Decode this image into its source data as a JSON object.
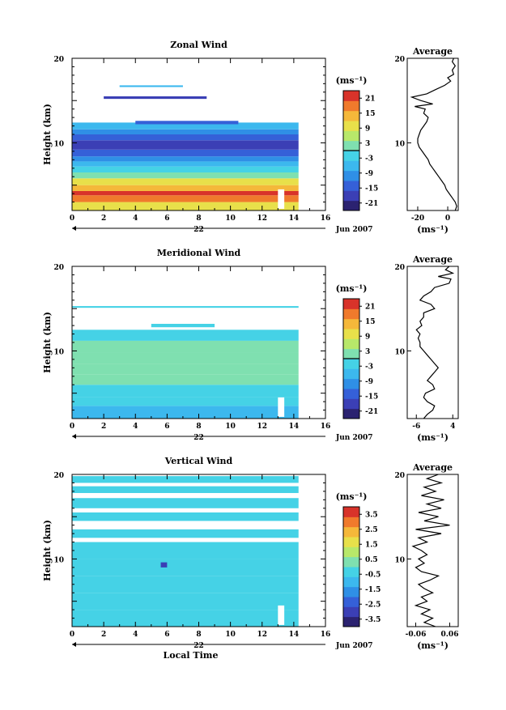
{
  "chart_data": [
    {
      "type": "heatmap",
      "title": "Zonal Wind",
      "xlabel": "",
      "ylabel": "Height (km)",
      "xlim": [
        0,
        16
      ],
      "ylim": [
        2,
        20
      ],
      "xticks": [
        "0",
        "2",
        "4",
        "6",
        "8",
        "10",
        "12",
        "14",
        "16"
      ],
      "yticks": [
        {
          "v": 10,
          "t": "10"
        },
        {
          "v": 20,
          "t": "20"
        }
      ],
      "date_marker": "22",
      "date_label": "Jun 2007",
      "data_xmax": 14.3,
      "colorbar": {
        "unit_label": "(ms⁻¹)",
        "ticks": [
          "21",
          "15",
          "9",
          "3",
          "-3",
          "-9",
          "-15",
          "-21"
        ],
        "range": [
          -24,
          24
        ],
        "zero_line": true
      },
      "layers": [
        {
          "y0": 2.0,
          "y1": 3.0,
          "value": 8
        },
        {
          "y0": 3.0,
          "y1": 3.8,
          "value": 16
        },
        {
          "y0": 3.8,
          "y1": 4.3,
          "value": 20
        },
        {
          "y0": 4.3,
          "y1": 5.0,
          "value": 14
        },
        {
          "y0": 5.0,
          "y1": 5.8,
          "value": 8
        },
        {
          "y0": 5.8,
          "y1": 6.5,
          "value": 2
        },
        {
          "y0": 6.5,
          "y1": 7.2,
          "value": -4
        },
        {
          "y0": 7.2,
          "y1": 7.8,
          "value": -8
        },
        {
          "y0": 7.8,
          "y1": 8.4,
          "value": -12
        },
        {
          "y0": 8.4,
          "y1": 9.2,
          "value": -16
        },
        {
          "y0": 9.2,
          "y1": 10.3,
          "value": -19
        },
        {
          "y0": 10.3,
          "y1": 11.0,
          "value": -14
        },
        {
          "y0": 11.0,
          "y1": 11.6,
          "value": -10
        },
        {
          "y0": 11.6,
          "y1": 12.4,
          "value": -6
        }
      ],
      "upper_patches": [
        {
          "x0": 2.0,
          "x1": 8.5,
          "y0": 15.2,
          "y1": 15.5,
          "value": -18
        },
        {
          "x0": 4.0,
          "x1": 10.5,
          "y0": 12.2,
          "y1": 12.6,
          "value": -14
        },
        {
          "x0": 3.0,
          "x1": 7.0,
          "y0": 16.6,
          "y1": 16.8,
          "value": -6
        }
      ],
      "average_profile": {
        "title": "Average",
        "xlabel": "(ms⁻¹)",
        "xlim": [
          -27,
          7
        ],
        "xticks": [
          {
            "v": -20,
            "t": "-20"
          },
          {
            "v": 0,
            "t": "0"
          }
        ],
        "yticks": [
          {
            "v": 10,
            "t": "10"
          },
          {
            "v": 20,
            "t": "20"
          }
        ],
        "points": [
          [
            5,
            2
          ],
          [
            6,
            2.5
          ],
          [
            5,
            3
          ],
          [
            3,
            3.5
          ],
          [
            1,
            4
          ],
          [
            -1,
            4.5
          ],
          [
            -2,
            5
          ],
          [
            -4,
            5.5
          ],
          [
            -6,
            6
          ],
          [
            -8,
            6.5
          ],
          [
            -10,
            7
          ],
          [
            -12,
            7.5
          ],
          [
            -13,
            8
          ],
          [
            -15,
            8.5
          ],
          [
            -17,
            9
          ],
          [
            -19,
            9.5
          ],
          [
            -20,
            10
          ],
          [
            -20,
            10.5
          ],
          [
            -19,
            11
          ],
          [
            -18,
            11.5
          ],
          [
            -16,
            12
          ],
          [
            -14,
            12.5
          ],
          [
            -13,
            13
          ],
          [
            -16,
            13.5
          ],
          [
            -15,
            14
          ],
          [
            -22,
            14.3
          ],
          [
            -10,
            14.6
          ],
          [
            -18,
            15
          ],
          [
            -24,
            15.4
          ],
          [
            -14,
            15.8
          ],
          [
            -8,
            16.3
          ],
          [
            -2,
            16.8
          ],
          [
            2,
            17.3
          ],
          [
            0,
            17.7
          ],
          [
            4,
            18.1
          ],
          [
            3,
            18.6
          ],
          [
            5,
            19.1
          ],
          [
            3,
            19.6
          ],
          [
            4,
            20
          ]
        ]
      }
    },
    {
      "type": "heatmap",
      "title": "Meridional Wind",
      "xlabel": "",
      "ylabel": "Height (km)",
      "xlim": [
        0,
        16
      ],
      "ylim": [
        2,
        20
      ],
      "xticks": [
        "0",
        "2",
        "4",
        "6",
        "8",
        "10",
        "12",
        "14",
        "16"
      ],
      "yticks": [
        {
          "v": 10,
          "t": "10"
        },
        {
          "v": 20,
          "t": "20"
        }
      ],
      "date_marker": "22",
      "date_label": "Jun 2007",
      "data_xmax": 14.3,
      "colorbar": {
        "unit_label": "(ms⁻¹)",
        "ticks": [
          "21",
          "15",
          "9",
          "3",
          "-3",
          "-9",
          "-15",
          "-21"
        ],
        "range": [
          -24,
          24
        ],
        "zero_line": true
      },
      "layers": [
        {
          "y0": 2.0,
          "y1": 3.5,
          "value": -5
        },
        {
          "y0": 3.5,
          "y1": 4.5,
          "value": -3
        },
        {
          "y0": 4.5,
          "y1": 6.0,
          "value": -1
        },
        {
          "y0": 6.0,
          "y1": 7.2,
          "value": 1
        },
        {
          "y0": 7.2,
          "y1": 8.5,
          "value": 2
        },
        {
          "y0": 8.5,
          "y1": 9.8,
          "value": 1
        },
        {
          "y0": 9.8,
          "y1": 11.2,
          "value": 2
        },
        {
          "y0": 11.2,
          "y1": 12.5,
          "value": -1
        }
      ],
      "upper_patches": [
        {
          "x0": 0.0,
          "x1": 14.3,
          "y0": 15.1,
          "y1": 15.3,
          "value": -4
        },
        {
          "x0": 5.0,
          "x1": 9.0,
          "y0": 12.8,
          "y1": 13.2,
          "value": -2
        }
      ],
      "average_profile": {
        "title": "Average",
        "xlabel": "(ms⁻¹)",
        "xlim": [
          -8.5,
          5.5
        ],
        "xticks": [
          {
            "v": -6,
            "t": "-6"
          },
          {
            "v": 4,
            "t": "4"
          }
        ],
        "yticks": [
          {
            "v": 10,
            "t": "10"
          },
          {
            "v": 20,
            "t": "20"
          }
        ],
        "points": [
          [
            -4,
            2
          ],
          [
            -3,
            2.5
          ],
          [
            -1.5,
            3
          ],
          [
            -1,
            3.5
          ],
          [
            -3,
            4
          ],
          [
            -4,
            4.5
          ],
          [
            -3.5,
            5
          ],
          [
            -1,
            5.5
          ],
          [
            -1.5,
            6
          ],
          [
            -3,
            6.5
          ],
          [
            -2,
            7
          ],
          [
            -1,
            7.5
          ],
          [
            0,
            8
          ],
          [
            -1,
            8.5
          ],
          [
            -2,
            9
          ],
          [
            -3,
            9.5
          ],
          [
            -4,
            10
          ],
          [
            -5,
            10.5
          ],
          [
            -5,
            11
          ],
          [
            -5.5,
            11.5
          ],
          [
            -5,
            12
          ],
          [
            -6,
            12.5
          ],
          [
            -4.5,
            13
          ],
          [
            -5,
            13.5
          ],
          [
            -4,
            14
          ],
          [
            -4,
            14.5
          ],
          [
            -1,
            15
          ],
          [
            -2,
            15.5
          ],
          [
            -5,
            16
          ],
          [
            -4,
            16.5
          ],
          [
            -2,
            17
          ],
          [
            -1,
            17.5
          ],
          [
            3,
            18
          ],
          [
            3.5,
            18.5
          ],
          [
            0,
            18.8
          ],
          [
            4,
            19.2
          ],
          [
            2,
            19.6
          ],
          [
            3,
            20
          ]
        ]
      }
    },
    {
      "type": "heatmap",
      "title": "Vertical Wind",
      "xlabel": "Local Time",
      "ylabel": "Height (km)",
      "xlim": [
        0,
        16
      ],
      "ylim": [
        2,
        20
      ],
      "xticks": [
        "0",
        "2",
        "4",
        "6",
        "8",
        "10",
        "12",
        "14",
        "16"
      ],
      "yticks": [
        {
          "v": 10,
          "t": "10"
        },
        {
          "v": 20,
          "t": "20"
        }
      ],
      "date_marker": "22",
      "date_label": "Jun 2007",
      "data_xmax": 14.3,
      "colorbar": {
        "unit_label": "(ms⁻¹)",
        "ticks": [
          "3.5",
          "2.5",
          "1.5",
          "0.5",
          "-0.5",
          "-1.5",
          "-2.5",
          "-3.5"
        ],
        "range": [
          -4,
          4
        ],
        "zero_line": false
      },
      "layers": [
        {
          "y0": 2.0,
          "y1": 4.0,
          "value": -0.3
        },
        {
          "y0": 4.0,
          "y1": 6.0,
          "value": -0.1
        },
        {
          "y0": 6.0,
          "y1": 8.0,
          "value": -0.4
        },
        {
          "y0": 8.0,
          "y1": 10.0,
          "value": -0.2
        },
        {
          "y0": 10.0,
          "y1": 12.0,
          "value": -0.5
        },
        {
          "y0": 12.5,
          "y1": 13.5,
          "value": -0.6
        },
        {
          "y0": 14.5,
          "y1": 15.5,
          "value": -0.3
        },
        {
          "y0": 16.0,
          "y1": 17.2,
          "value": -0.4
        },
        {
          "y0": 17.8,
          "y1": 18.6,
          "value": -0.2
        },
        {
          "y0": 19.0,
          "y1": 19.8,
          "value": -0.5
        }
      ],
      "upper_patches": [
        {
          "x0": 5.6,
          "x1": 6.0,
          "y0": 9.0,
          "y1": 9.6,
          "value": -2.8
        }
      ],
      "average_profile": {
        "title": "Average",
        "xlabel": "(ms⁻¹)",
        "xlim": [
          -0.09,
          0.09
        ],
        "xticks": [
          {
            "v": -0.06,
            "t": "-0.06"
          },
          {
            "v": 0.06,
            "t": "0.06"
          }
        ],
        "yticks": [
          {
            "v": 10,
            "t": "10"
          },
          {
            "v": 20,
            "t": "20"
          }
        ],
        "points": [
          [
            0.01,
            2
          ],
          [
            -0.03,
            2.5
          ],
          [
            0.0,
            3
          ],
          [
            -0.04,
            3.5
          ],
          [
            -0.01,
            4
          ],
          [
            -0.06,
            4.5
          ],
          [
            -0.02,
            5
          ],
          [
            -0.04,
            5.5
          ],
          [
            0.0,
            6
          ],
          [
            -0.03,
            6.5
          ],
          [
            -0.05,
            7
          ],
          [
            -0.01,
            7.5
          ],
          [
            0.02,
            8
          ],
          [
            -0.04,
            8.5
          ],
          [
            -0.06,
            9
          ],
          [
            -0.03,
            9.5
          ],
          [
            -0.05,
            10
          ],
          [
            -0.02,
            10.5
          ],
          [
            -0.04,
            11
          ],
          [
            -0.07,
            11.5
          ],
          [
            -0.02,
            12
          ],
          [
            -0.05,
            12.5
          ],
          [
            0.03,
            13
          ],
          [
            -0.06,
            13.5
          ],
          [
            0.06,
            14
          ],
          [
            -0.03,
            14.5
          ],
          [
            0.02,
            15
          ],
          [
            -0.05,
            15.5
          ],
          [
            0.03,
            16
          ],
          [
            -0.02,
            16.5
          ],
          [
            0.04,
            17
          ],
          [
            -0.04,
            17.5
          ],
          [
            0.01,
            18
          ],
          [
            -0.03,
            18.5
          ],
          [
            0.03,
            19
          ],
          [
            -0.02,
            19.5
          ],
          [
            0.02,
            20
          ]
        ]
      }
    }
  ]
}
